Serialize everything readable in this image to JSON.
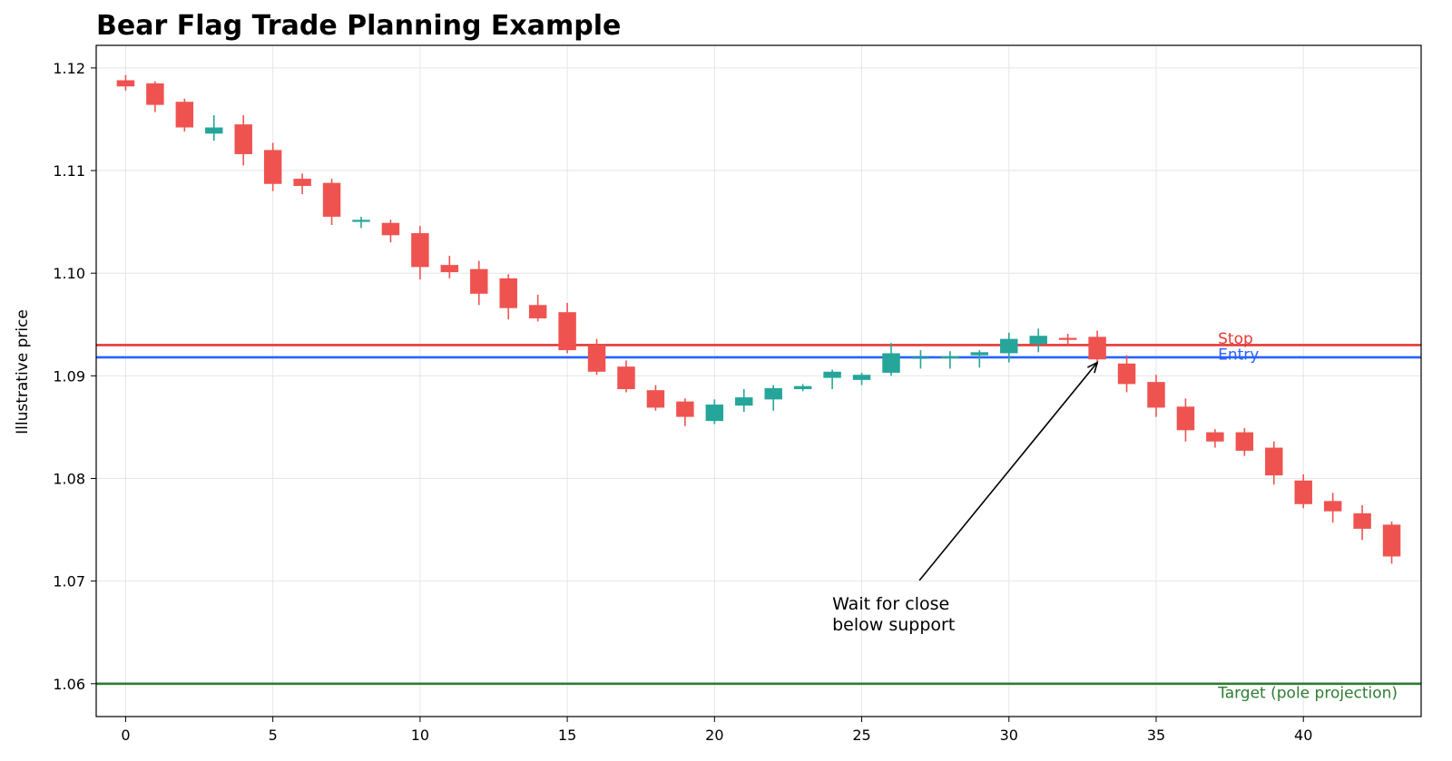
{
  "chart_data": {
    "type": "candlestick",
    "title": "Bear Flag Trade Planning Example",
    "xlabel": "",
    "ylabel": "Illustrative price",
    "xlim": [
      -1,
      44
    ],
    "ylim": [
      1.0568,
      1.1222
    ],
    "x_ticks": [
      0,
      5,
      10,
      15,
      20,
      25,
      30,
      35,
      40
    ],
    "y_ticks": [
      1.06,
      1.07,
      1.08,
      1.09,
      1.1,
      1.11,
      1.12
    ],
    "y_tick_labels": [
      "1.06",
      "1.07",
      "1.08",
      "1.09",
      "1.10",
      "1.11",
      "1.12"
    ],
    "grid": true,
    "colors": {
      "up": "#26a69a",
      "down": "#ef5350"
    },
    "candles": [
      {
        "x": 0,
        "o": 1.1188,
        "h": 1.1193,
        "l": 1.1178,
        "c": 1.1182
      },
      {
        "x": 1,
        "o": 1.1185,
        "h": 1.1187,
        "l": 1.1157,
        "c": 1.1164
      },
      {
        "x": 2,
        "o": 1.1167,
        "h": 1.117,
        "l": 1.1138,
        "c": 1.1142
      },
      {
        "x": 3,
        "o": 1.1136,
        "h": 1.1154,
        "l": 1.1129,
        "c": 1.1142
      },
      {
        "x": 4,
        "o": 1.1145,
        "h": 1.1154,
        "l": 1.1105,
        "c": 1.1116
      },
      {
        "x": 5,
        "o": 1.112,
        "h": 1.1127,
        "l": 1.108,
        "c": 1.1087
      },
      {
        "x": 6,
        "o": 1.1092,
        "h": 1.1097,
        "l": 1.1077,
        "c": 1.1085
      },
      {
        "x": 7,
        "o": 1.1088,
        "h": 1.1092,
        "l": 1.1047,
        "c": 1.1055
      },
      {
        "x": 8,
        "o": 1.105,
        "h": 1.1055,
        "l": 1.1044,
        "c": 1.1052
      },
      {
        "x": 9,
        "o": 1.1049,
        "h": 1.1052,
        "l": 1.103,
        "c": 1.1037
      },
      {
        "x": 10,
        "o": 1.1039,
        "h": 1.1046,
        "l": 1.0994,
        "c": 1.1006
      },
      {
        "x": 11,
        "o": 1.1008,
        "h": 1.1017,
        "l": 1.0995,
        "c": 1.1001
      },
      {
        "x": 12,
        "o": 1.1004,
        "h": 1.1012,
        "l": 1.0969,
        "c": 1.098
      },
      {
        "x": 13,
        "o": 1.0995,
        "h": 1.0999,
        "l": 1.0955,
        "c": 1.0966
      },
      {
        "x": 14,
        "o": 1.0969,
        "h": 1.0979,
        "l": 1.0953,
        "c": 1.0956
      },
      {
        "x": 15,
        "o": 1.0962,
        "h": 1.0971,
        "l": 1.0922,
        "c": 1.0925
      },
      {
        "x": 16,
        "o": 1.093,
        "h": 1.0936,
        "l": 1.0901,
        "c": 1.0904
      },
      {
        "x": 17,
        "o": 1.0909,
        "h": 1.0915,
        "l": 1.0884,
        "c": 1.0887
      },
      {
        "x": 18,
        "o": 1.0886,
        "h": 1.0891,
        "l": 1.0866,
        "c": 1.0869
      },
      {
        "x": 19,
        "o": 1.0875,
        "h": 1.0878,
        "l": 1.0851,
        "c": 1.086
      },
      {
        "x": 20,
        "o": 1.0856,
        "h": 1.0877,
        "l": 1.0853,
        "c": 1.0872
      },
      {
        "x": 21,
        "o": 1.0871,
        "h": 1.0887,
        "l": 1.0865,
        "c": 1.0879
      },
      {
        "x": 22,
        "o": 1.0877,
        "h": 1.0891,
        "l": 1.0866,
        "c": 1.0888
      },
      {
        "x": 23,
        "o": 1.0887,
        "h": 1.0892,
        "l": 1.0885,
        "c": 1.089
      },
      {
        "x": 24,
        "o": 1.0898,
        "h": 1.0906,
        "l": 1.0887,
        "c": 1.0904
      },
      {
        "x": 25,
        "o": 1.0896,
        "h": 1.0903,
        "l": 1.0891,
        "c": 1.0901
      },
      {
        "x": 26,
        "o": 1.0903,
        "h": 1.0932,
        "l": 1.09,
        "c": 1.0922
      },
      {
        "x": 27,
        "o": 1.0917,
        "h": 1.0925,
        "l": 1.0907,
        "c": 1.0918
      },
      {
        "x": 28,
        "o": 1.0917,
        "h": 1.0924,
        "l": 1.0907,
        "c": 1.0919
      },
      {
        "x": 29,
        "o": 1.092,
        "h": 1.0925,
        "l": 1.0908,
        "c": 1.0923
      },
      {
        "x": 30,
        "o": 1.0922,
        "h": 1.0942,
        "l": 1.0913,
        "c": 1.0936
      },
      {
        "x": 31,
        "o": 1.0931,
        "h": 1.0946,
        "l": 1.0923,
        "c": 1.0939
      },
      {
        "x": 32,
        "o": 1.0937,
        "h": 1.0941,
        "l": 1.093,
        "c": 1.0935
      },
      {
        "x": 33,
        "o": 1.0938,
        "h": 1.0944,
        "l": 1.0911,
        "c": 1.0916
      },
      {
        "x": 34,
        "o": 1.0912,
        "h": 1.092,
        "l": 1.0884,
        "c": 1.0892
      },
      {
        "x": 35,
        "o": 1.0894,
        "h": 1.0901,
        "l": 1.086,
        "c": 1.0869
      },
      {
        "x": 36,
        "o": 1.087,
        "h": 1.0878,
        "l": 1.0836,
        "c": 1.0847
      },
      {
        "x": 37,
        "o": 1.0845,
        "h": 1.0848,
        "l": 1.083,
        "c": 1.0836
      },
      {
        "x": 38,
        "o": 1.0845,
        "h": 1.0849,
        "l": 1.0822,
        "c": 1.0827
      },
      {
        "x": 39,
        "o": 1.083,
        "h": 1.0836,
        "l": 1.0794,
        "c": 1.0803
      },
      {
        "x": 40,
        "o": 1.0798,
        "h": 1.0804,
        "l": 1.0771,
        "c": 1.0775
      },
      {
        "x": 41,
        "o": 1.0778,
        "h": 1.0786,
        "l": 1.0757,
        "c": 1.0768
      },
      {
        "x": 42,
        "o": 1.0766,
        "h": 1.0774,
        "l": 1.074,
        "c": 1.0751
      },
      {
        "x": 43,
        "o": 1.0755,
        "h": 1.0758,
        "l": 1.0717,
        "c": 1.0724
      }
    ],
    "levels": [
      {
        "name": "Stop",
        "value": 1.093,
        "color": "#e53935"
      },
      {
        "name": "Entry",
        "value": 1.0918,
        "color": "#2962ff"
      },
      {
        "name": "Target (pole projection)",
        "value": 1.06,
        "color": "#2e7d32"
      }
    ],
    "annotation": {
      "text_lines": [
        "Wait for close",
        "below support"
      ],
      "text_x": 24.0,
      "text_y": 1.066,
      "arrow_x": 33.0,
      "arrow_y": 1.0913,
      "color": "#000000"
    }
  }
}
